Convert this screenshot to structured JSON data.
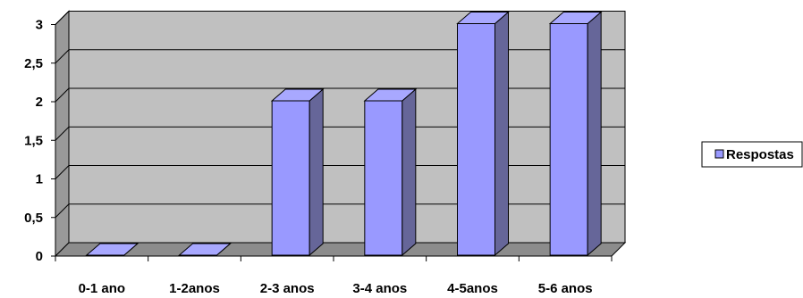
{
  "chart_data": {
    "type": "bar",
    "style": "3d-column",
    "categories": [
      "0-1 ano",
      "1-2anos",
      "2-3 anos",
      "3-4 anos",
      "4-5anos",
      "5-6 anos"
    ],
    "series": [
      {
        "name": "Respostas",
        "values": [
          0,
          0,
          2,
          2,
          3,
          3
        ]
      }
    ],
    "yticks": [
      "0",
      "0,5",
      "1",
      "1,5",
      "2",
      "2,5",
      "3"
    ],
    "ylim": [
      0,
      3
    ],
    "grid": true,
    "legend_position": "right",
    "colors": {
      "bar_front": "#9999ff",
      "bar_side": "#666699",
      "bar_top": "#a8a8ff",
      "wall": "#c0c0c0",
      "floor": "#8c8c8c",
      "wall_side": "#999999",
      "outline": "#000000"
    }
  }
}
